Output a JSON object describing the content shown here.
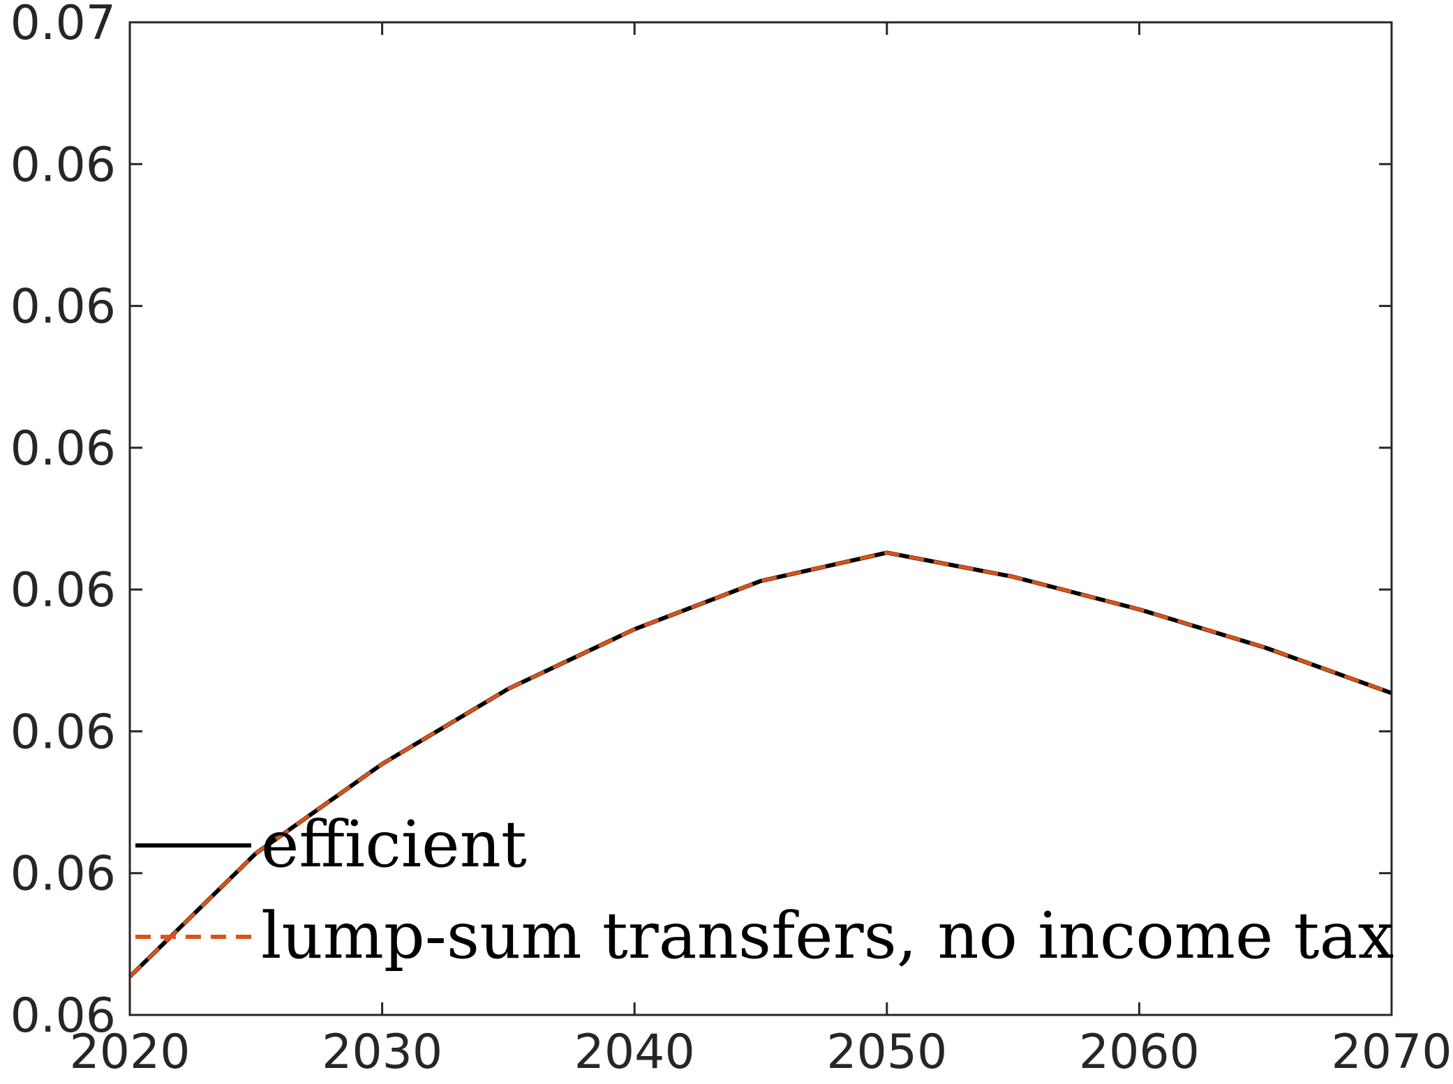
{
  "chart_data": {
    "type": "line",
    "title": "",
    "xlabel": "",
    "ylabel": "",
    "xlim": [
      2020,
      2070
    ],
    "ylim": [
      0.0595,
      0.0665
    ],
    "xticks": [
      2020,
      2030,
      2040,
      2050,
      2060,
      2070
    ],
    "xtick_labels": [
      "2020",
      "2030",
      "2040",
      "2050",
      "2060",
      "2070"
    ],
    "yticks": [
      0.0595,
      0.0605,
      0.0615,
      0.0625,
      0.0635,
      0.0645,
      0.0655,
      0.0665
    ],
    "ytick_labels": [
      "0.06",
      "0.06",
      "0.06",
      "0.06",
      "0.06",
      "0.06",
      "0.06",
      "0.07"
    ],
    "grid": false,
    "legend_position": "bottom-left",
    "x": [
      2020,
      2025,
      2030,
      2035,
      2040,
      2045,
      2050,
      2055,
      2060,
      2065,
      2070
    ],
    "series": [
      {
        "name": "efficient",
        "color": "#000000",
        "style": "solid",
        "values": [
          0.05977,
          0.06064,
          0.06127,
          0.0618,
          0.06222,
          0.06256,
          0.06276,
          0.06259,
          0.06236,
          0.06209,
          0.06177
        ]
      },
      {
        "name": "lump-sum transfers, no income tax",
        "color": "#D95319",
        "style": "dashed",
        "values": [
          0.05977,
          0.06064,
          0.06127,
          0.0618,
          0.06222,
          0.06256,
          0.06276,
          0.06259,
          0.06236,
          0.06209,
          0.06177
        ]
      }
    ]
  }
}
